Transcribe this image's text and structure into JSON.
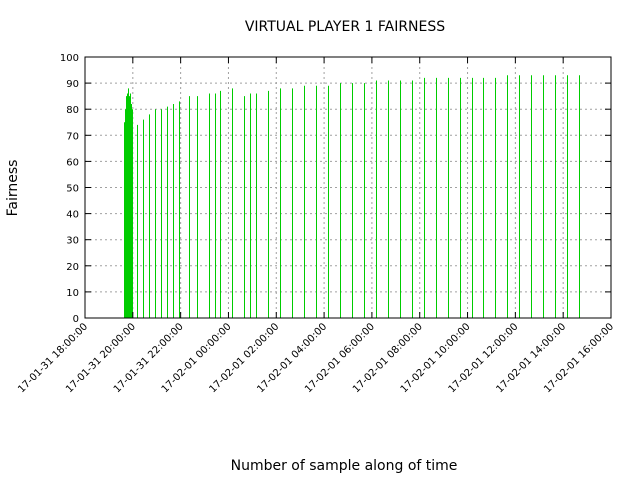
{
  "chart_data": {
    "type": "bar",
    "title": "VIRTUAL PLAYER 1 FAIRNESS",
    "xlabel": "Number of sample along of time",
    "ylabel": "Fairness",
    "ylim": [
      0,
      100
    ],
    "yticks": [
      0,
      10,
      20,
      30,
      40,
      50,
      60,
      70,
      80,
      90,
      100
    ],
    "xlim": [
      "17-01-31 18:00:00",
      "17-02-01 16:00:00"
    ],
    "xticks": [
      "17-01-31 18:00:00",
      "17-01-31 20:00:00",
      "17-01-31 22:00:00",
      "17-02-01 00:00:00",
      "17-02-01 02:00:00",
      "17-02-01 04:00:00",
      "17-02-01 06:00:00",
      "17-02-01 08:00:00",
      "17-02-01 10:00:00",
      "17-02-01 12:00:00",
      "17-02-01 14:00:00",
      "17-02-01 16:00:00"
    ],
    "grid": true,
    "bar_color": "#00cc00",
    "series": [
      {
        "x": [
          "17-01-31 19:37:00",
          "17-01-31 19:38:00",
          "17-01-31 19:39:00",
          "17-01-31 19:40:00",
          "17-01-31 19:41:00",
          "17-01-31 19:42:00",
          "17-01-31 19:43:00",
          "17-01-31 19:44:00",
          "17-01-31 19:46:00",
          "17-01-31 19:47:00",
          "17-01-31 19:49:00",
          "17-01-31 19:51:00",
          "17-01-31 19:53:00",
          "17-01-31 19:55:00",
          "17-01-31 19:57:00",
          "17-01-31 20:10:00",
          "17-01-31 20:25:00",
          "17-01-31 20:40:00",
          "17-01-31 20:55:00",
          "17-01-31 21:10:00",
          "17-01-31 21:25:00",
          "17-01-31 21:40:00",
          "17-01-31 21:55:00",
          "17-01-31 22:20:00",
          "17-01-31 22:40:00",
          "17-01-31 23:10:00",
          "17-01-31 23:25:00",
          "17-01-31 23:40:00",
          "17-02-01 00:10:00",
          "17-02-01 00:40:00",
          "17-02-01 00:55:00",
          "17-02-01 01:10:00",
          "17-02-01 01:40:00",
          "17-02-01 02:10:00",
          "17-02-01 02:40:00",
          "17-02-01 03:10:00",
          "17-02-01 03:40:00",
          "17-02-01 04:10:00",
          "17-02-01 04:40:00",
          "17-02-01 05:10:00",
          "17-02-01 05:40:00",
          "17-02-01 06:10:00",
          "17-02-01 06:40:00",
          "17-02-01 07:10:00",
          "17-02-01 07:40:00",
          "17-02-01 08:10:00",
          "17-02-01 08:40:00",
          "17-02-01 09:10:00",
          "17-02-01 09:40:00",
          "17-02-01 10:10:00",
          "17-02-01 10:40:00",
          "17-02-01 11:10:00",
          "17-02-01 11:40:00",
          "17-02-01 12:10:00",
          "17-02-01 12:40:00",
          "17-02-01 13:10:00",
          "17-02-01 13:40:00",
          "17-02-01 14:10:00",
          "17-02-01 14:40:00"
        ],
        "values": [
          50,
          66,
          75,
          78,
          80,
          82,
          84,
          85,
          86,
          87,
          88,
          85,
          86,
          82,
          80,
          74,
          76,
          78,
          80,
          80,
          81,
          82,
          83,
          85,
          85,
          86,
          86,
          87,
          88,
          85,
          86,
          86,
          87,
          88,
          88,
          89,
          89,
          89,
          90,
          90,
          90,
          91,
          91,
          91,
          91,
          92,
          92,
          92,
          92,
          92,
          92,
          92,
          93,
          93,
          93,
          93,
          93,
          93,
          93
        ]
      }
    ]
  }
}
